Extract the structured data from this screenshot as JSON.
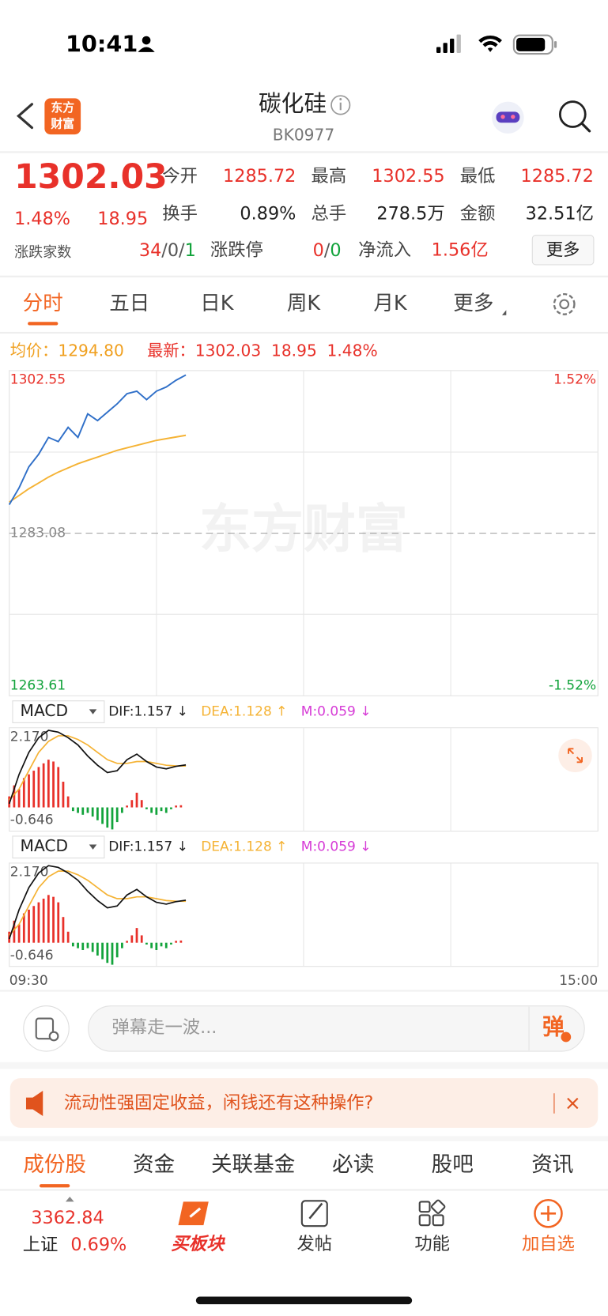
{
  "status_bar": {
    "time": "10:41"
  },
  "header": {
    "logo": [
      "东方",
      "财富"
    ],
    "title": "碳化硅",
    "code": "BK0977"
  },
  "quote": {
    "price": "1302.03",
    "change_pct": "1.48%",
    "change": "18.95",
    "fields": [
      {
        "label": "今开",
        "value": "1285.72"
      },
      {
        "label": "最高",
        "value": "1302.55"
      },
      {
        "label": "最低",
        "value": "1285.72"
      },
      {
        "label": "换手",
        "value": "0.89%"
      },
      {
        "label": "总手",
        "value": "278.5万"
      },
      {
        "label": "金额",
        "value": "32.51亿"
      }
    ],
    "breadth": {
      "label": "涨跌家数",
      "up": "34",
      "flat": "0",
      "down": "1",
      "separator": "/"
    },
    "limit": {
      "label": "涨跌停",
      "up": "0",
      "down": "0"
    },
    "net_inflow": {
      "label": "净流入",
      "value": "1.56亿"
    },
    "more_button": "更多"
  },
  "chart_tabs": {
    "items": [
      "分时",
      "五日",
      "日K",
      "周K",
      "月K",
      "更多"
    ],
    "active": 0
  },
  "intraday": {
    "average_label": "均价：",
    "average": "1294.80",
    "latest_label": "最新：",
    "latest": "1302.03",
    "change": "18.95",
    "change_pct": "1.48%",
    "watermark": "东方财富",
    "chart": {
      "type": "line",
      "xlim": [
        0,
        240
      ],
      "ylim": [
        1263.61,
        1302.55
      ],
      "yticks": [
        1263.61,
        1283.08,
        1302.55
      ],
      "right_labels": [
        "1.52%",
        "-1.52%"
      ],
      "xticks": [
        {
          "value": 0,
          "label": "09:30"
        },
        {
          "value": 240,
          "label": "15:00"
        }
      ],
      "x": [
        0,
        4,
        8,
        12,
        16,
        20,
        24,
        28,
        32,
        36,
        40,
        44,
        48,
        52,
        56,
        60,
        64,
        68,
        72
      ],
      "series": [
        {
          "color": "#2f6fc8",
          "values": [
            1286.5,
            1288.51,
            1291.03,
            1292.54,
            1294.55,
            1294.05,
            1295.76,
            1294.55,
            1297.37,
            1296.56,
            1297.57,
            1298.57,
            1299.78,
            1300.08,
            1299.08,
            1300.08,
            1300.59,
            1301.39,
            1302.03
          ]
        },
        {
          "color": "#f5b335",
          "values": [
            1286.8,
            1287.6,
            1288.4,
            1289.1,
            1289.8,
            1290.4,
            1290.9,
            1291.4,
            1291.8,
            1292.2,
            1292.6,
            1293.0,
            1293.3,
            1293.6,
            1293.9,
            1294.2,
            1294.4,
            1294.6,
            1294.8
          ]
        }
      ]
    }
  },
  "macd": {
    "selector": "MACD",
    "dif_label": "DIF:1.157 ↓",
    "dea_label": "DEA:1.128 ↑",
    "m_label": "M:0.059 ↓",
    "chart": {
      "type": "macd",
      "xlim": [
        0,
        240
      ],
      "ylim": [
        -0.646,
        2.17
      ],
      "yticks": [
        {
          "value": 2.17,
          "label": "2.170"
        },
        -0.646
      ],
      "bar_x": [
        0,
        2,
        4,
        6,
        8,
        10,
        12,
        14,
        16,
        18,
        20,
        22,
        24,
        26,
        28,
        30,
        32,
        34,
        36,
        38,
        40,
        42,
        44,
        46,
        48,
        50,
        52,
        54,
        56,
        58,
        60,
        62,
        64,
        66,
        68,
        70
      ],
      "bars": [
        0.3,
        0.6,
        0.5,
        0.8,
        0.9,
        1.0,
        1.1,
        1.2,
        1.3,
        1.25,
        1.1,
        0.7,
        0.3,
        -0.1,
        -0.15,
        -0.2,
        -0.15,
        -0.25,
        -0.35,
        -0.45,
        -0.55,
        -0.6,
        -0.4,
        -0.15,
        0.05,
        0.2,
        0.4,
        0.2,
        -0.05,
        -0.15,
        -0.2,
        -0.1,
        -0.15,
        -0.05,
        0.05,
        0.059
      ],
      "up_color": "#e8312a",
      "down_color": "#12a33b",
      "line_x": [
        0,
        4,
        8,
        12,
        16,
        20,
        24,
        28,
        32,
        36,
        40,
        44,
        48,
        52,
        56,
        60,
        64,
        68,
        72
      ],
      "dif": {
        "color": "#111111",
        "values": [
          0.1,
          0.9,
          1.5,
          1.9,
          2.1,
          2.05,
          1.9,
          1.7,
          1.4,
          1.15,
          0.95,
          1.0,
          1.3,
          1.45,
          1.25,
          1.1,
          1.05,
          1.12,
          1.157
        ]
      },
      "dea": {
        "color": "#f5b335",
        "values": [
          0.2,
          0.5,
          1.0,
          1.5,
          1.8,
          1.95,
          1.95,
          1.85,
          1.7,
          1.5,
          1.3,
          1.2,
          1.2,
          1.25,
          1.25,
          1.2,
          1.15,
          1.13,
          1.128
        ]
      }
    }
  },
  "comment": {
    "placeholder": "弹幕走一波...",
    "button": "弹"
  },
  "banner": {
    "text": "流动性强固定收益，闲钱还有这种操作?"
  },
  "bottom_tabs": {
    "items": [
      "成份股",
      "资金",
      "关联基金",
      "必读",
      "股吧",
      "资讯"
    ],
    "active": 0
  },
  "index": {
    "value": "3362.84",
    "name": "上证",
    "change_pct": "0.69%"
  },
  "nav": [
    "买板块",
    "发帖",
    "功能",
    "加自选"
  ]
}
